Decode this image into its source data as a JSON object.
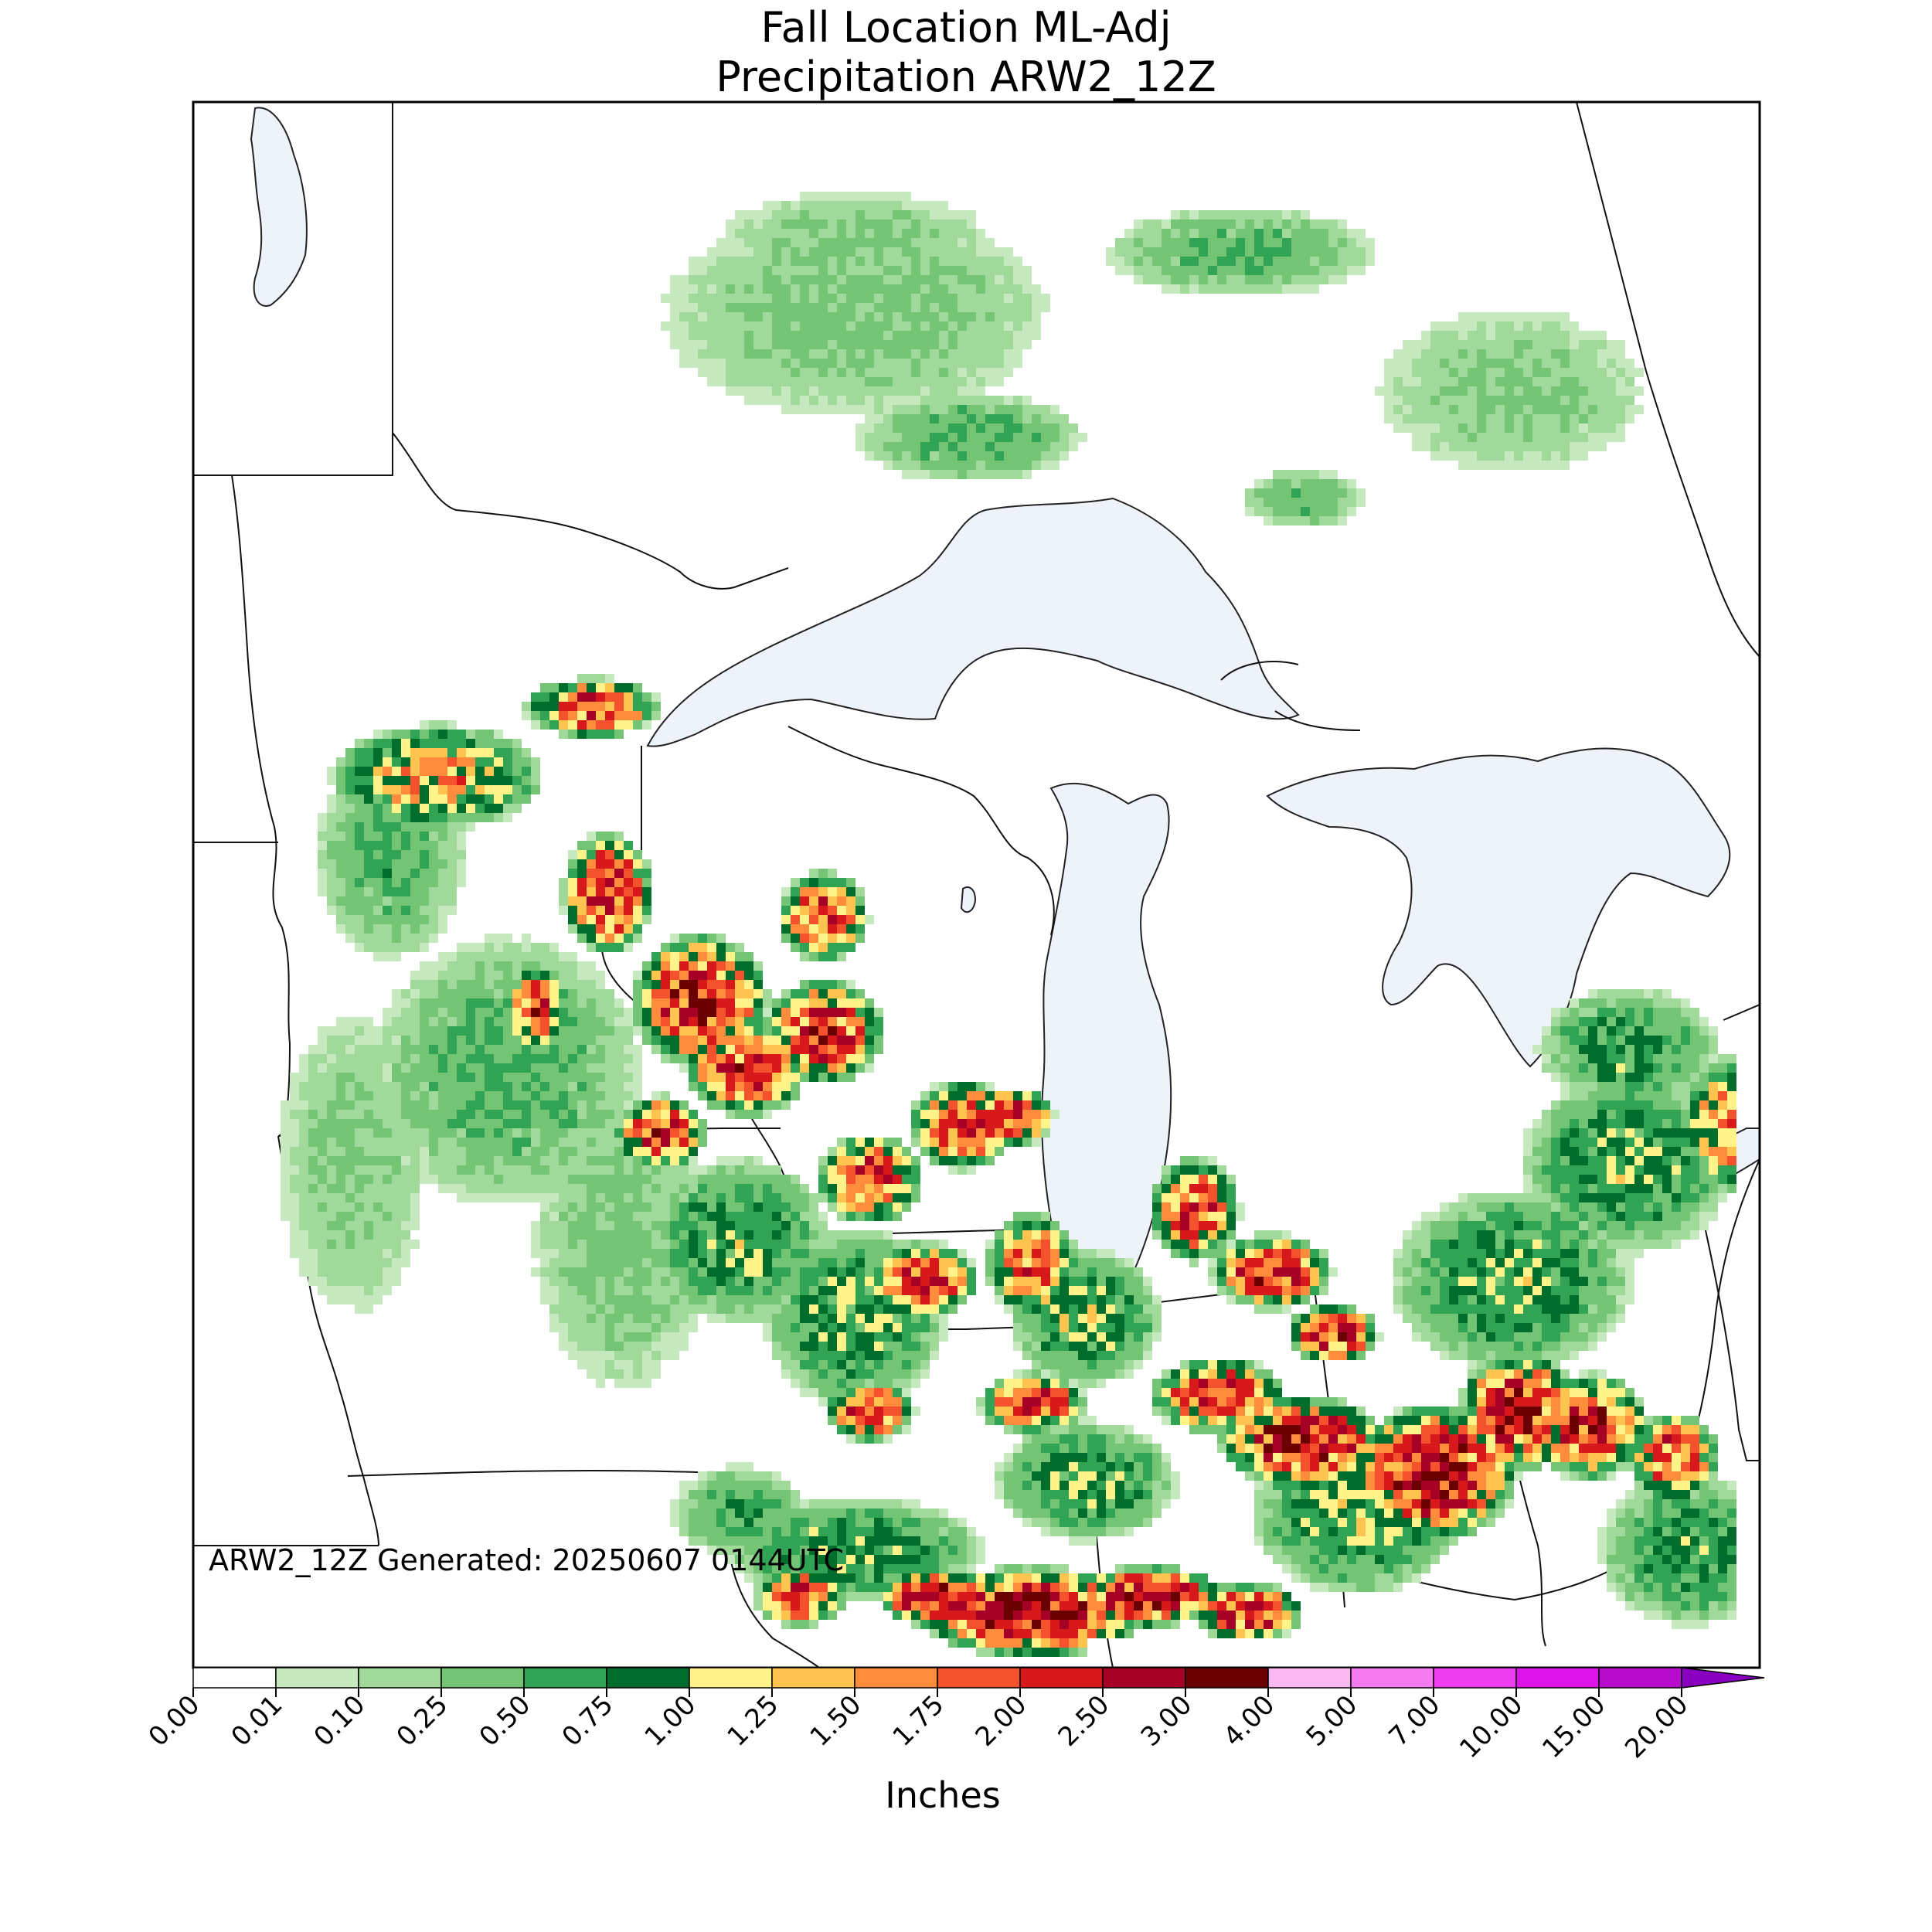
{
  "title": {
    "line1": "Fall Location ML-Adj",
    "line2": "Precipitation ARW2_12Z"
  },
  "stamp": "ARW2_12Z Generated: 20250607 0144UTC",
  "colorbar": {
    "units_label": "Inches",
    "ticks": [
      "0.00",
      "0.01",
      "0.10",
      "0.25",
      "0.50",
      "0.75",
      "1.00",
      "1.25",
      "1.50",
      "1.75",
      "2.00",
      "2.50",
      "3.00",
      "4.00",
      "5.00",
      "7.00",
      "10.00",
      "15.00",
      "20.00"
    ],
    "colors": [
      "#ffffff",
      "#c7e9c0",
      "#a1d99b",
      "#74c476",
      "#31a354",
      "#006d2c",
      "#fff38a",
      "#fec44f",
      "#fd8d3c",
      "#f4522c",
      "#d7191c",
      "#a50026",
      "#6b0000",
      "#f9b8f0",
      "#f57cf0",
      "#ee3cf0",
      "#dc14ea",
      "#b80ccc",
      "#8a00c0"
    ],
    "extend": "max"
  },
  "colors": {
    "water": "#eef3f9",
    "border": "#000000",
    "frame": "#000000"
  }
}
